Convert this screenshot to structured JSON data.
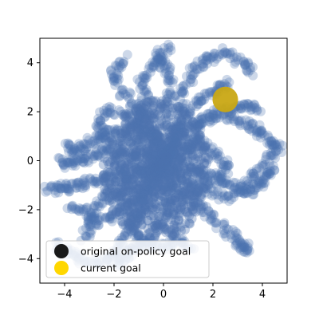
{
  "chart_data": {
    "type": "scatter",
    "xlim": [
      -5,
      5
    ],
    "ylim": [
      -5,
      5
    ],
    "x_ticks": [
      -4,
      -2,
      0,
      2,
      4
    ],
    "y_ticks": [
      -4,
      -2,
      0,
      2,
      4
    ],
    "x_tick_labels": [
      "−4",
      "−2",
      "0",
      "2",
      "4"
    ],
    "y_tick_labels": [
      "−4",
      "−2",
      "0",
      "2",
      "4"
    ],
    "grid": false,
    "legend_position": "lower-left",
    "colors": {
      "trajectory": "#4c72b0",
      "original_goal": "#1a1a1a",
      "current_goal": "#ffd700",
      "current_goal_marker_overlay": "#c9a814"
    },
    "series": [
      {
        "name": "original on-policy goal",
        "marker": "circle",
        "points": []
      },
      {
        "name": "current goal",
        "marker": "circle",
        "points": [
          [
            2.5,
            2.5
          ]
        ]
      }
    ],
    "trajectory_walks": [
      [
        [
          0,
          0
        ],
        [
          -0.3,
          0.8
        ],
        [
          -0.6,
          1.6
        ],
        [
          -1.2,
          2.3
        ],
        [
          -1.8,
          3.0
        ],
        [
          -2.0,
          3.6
        ],
        [
          -1.6,
          4.2
        ]
      ],
      [
        [
          0,
          0
        ],
        [
          0.4,
          1.0
        ],
        [
          0.2,
          2.0
        ],
        [
          0.3,
          3.0
        ],
        [
          0.1,
          3.7
        ],
        [
          -0.3,
          4.3
        ],
        [
          0.3,
          4.7
        ]
      ],
      [
        [
          0,
          0
        ],
        [
          0.3,
          0.7
        ],
        [
          0.9,
          1.3
        ],
        [
          1.6,
          1.6
        ],
        [
          2.2,
          2.0
        ],
        [
          2.9,
          2.1
        ],
        [
          3.4,
          2.3
        ],
        [
          4.0,
          2.1
        ]
      ],
      [
        [
          0,
          0
        ],
        [
          0.5,
          -0.5
        ],
        [
          1.2,
          -1.0
        ],
        [
          1.8,
          -1.2
        ],
        [
          2.5,
          -1.5
        ],
        [
          3.2,
          -1.2
        ],
        [
          3.6,
          -0.6
        ],
        [
          4.2,
          0.0
        ],
        [
          4.7,
          0.6
        ]
      ],
      [
        [
          0,
          0
        ],
        [
          0.6,
          -1.0
        ],
        [
          1.3,
          -1.6
        ],
        [
          1.8,
          -2.2
        ],
        [
          2.4,
          -2.7
        ],
        [
          3.0,
          -3.2
        ],
        [
          3.2,
          -3.6
        ],
        [
          3.4,
          -3.5
        ]
      ],
      [
        [
          0,
          0
        ],
        [
          -0.5,
          -0.8
        ],
        [
          -1.0,
          -1.6
        ],
        [
          -1.6,
          -2.0
        ],
        [
          -2.2,
          -2.4
        ],
        [
          -2.8,
          -2.5
        ],
        [
          -3.2,
          -2.0
        ],
        [
          -3.8,
          -1.9
        ]
      ],
      [
        [
          0,
          0
        ],
        [
          -1.0,
          -0.4
        ],
        [
          -2.0,
          -0.6
        ],
        [
          -2.8,
          -0.8
        ],
        [
          -3.4,
          -1.0
        ],
        [
          -3.8,
          -1.1
        ],
        [
          -4.2,
          -1.1
        ],
        [
          -4.7,
          -1.2
        ]
      ],
      [
        [
          0,
          0
        ],
        [
          -0.7,
          -1.2
        ],
        [
          -1.2,
          -2.4
        ],
        [
          -1.6,
          -3.2
        ],
        [
          -1.9,
          -3.8
        ],
        [
          -2.5,
          -4.1
        ],
        [
          -3.2,
          -4.1
        ],
        [
          -3.8,
          -3.8
        ],
        [
          -4.4,
          -3.4
        ]
      ],
      [
        [
          0,
          0
        ],
        [
          -0.8,
          0.2
        ],
        [
          -1.6,
          0.3
        ],
        [
          -2.4,
          0.4
        ],
        [
          -2.9,
          0.2
        ],
        [
          -3.4,
          0.0
        ],
        [
          -3.8,
          -0.2
        ],
        [
          -4.2,
          0.1
        ]
      ],
      [
        [
          0,
          0
        ],
        [
          0.9,
          0.3
        ],
        [
          1.5,
          0.8
        ],
        [
          2.1,
          0.2
        ],
        [
          2.6,
          -0.3
        ],
        [
          2.2,
          -0.9
        ],
        [
          1.4,
          -0.6
        ]
      ],
      [
        [
          0,
          0
        ],
        [
          0.2,
          -1.2
        ],
        [
          0.1,
          -2.3
        ],
        [
          -0.4,
          -3.0
        ],
        [
          -0.9,
          -3.3
        ],
        [
          -1.3,
          -3.7
        ],
        [
          -1.6,
          -4.0
        ],
        [
          -2.0,
          -4.3
        ]
      ],
      [
        [
          0,
          0
        ],
        [
          -0.4,
          1.2
        ],
        [
          -1.3,
          1.8
        ],
        [
          -2.2,
          2.1
        ],
        [
          -2.6,
          1.6
        ],
        [
          -2.4,
          0.9
        ],
        [
          -1.8,
          0.6
        ]
      ],
      [
        [
          0,
          0
        ],
        [
          0.8,
          1.6
        ],
        [
          0.6,
          2.5
        ],
        [
          1.0,
          3.3
        ],
        [
          1.4,
          3.9
        ],
        [
          1.9,
          4.2
        ],
        [
          2.5,
          4.5
        ],
        [
          3.2,
          4.0
        ],
        [
          3.7,
          3.6
        ]
      ],
      [
        [
          0,
          0
        ],
        [
          1.1,
          -0.3
        ],
        [
          2.0,
          -0.6
        ],
        [
          2.8,
          -1.0
        ],
        [
          3.4,
          -1.3
        ],
        [
          3.9,
          -1.0
        ],
        [
          4.1,
          -0.5
        ],
        [
          4.4,
          -0.3
        ]
      ],
      [
        [
          0,
          0
        ],
        [
          -0.6,
          -0.3
        ],
        [
          -1.4,
          -0.9
        ],
        [
          -2.0,
          -1.4
        ],
        [
          -2.6,
          -1.7
        ],
        [
          -3.0,
          -2.6
        ],
        [
          -3.2,
          -3.2
        ]
      ],
      [
        [
          0,
          0
        ],
        [
          0.5,
          0.5
        ],
        [
          0.6,
          1.4
        ],
        [
          1.1,
          2.2
        ],
        [
          1.6,
          2.6
        ],
        [
          2.2,
          2.9
        ],
        [
          2.6,
          3.2
        ]
      ],
      [
        [
          0,
          0
        ],
        [
          -0.2,
          -0.6
        ],
        [
          -0.8,
          -1.8
        ],
        [
          -1.3,
          -2.6
        ],
        [
          -0.8,
          -3.4
        ],
        [
          0.0,
          -3.6
        ],
        [
          0.6,
          -3.2
        ],
        [
          1.2,
          -3.5
        ]
      ],
      [
        [
          0,
          0
        ],
        [
          0.3,
          0.4
        ],
        [
          -0.5,
          1.0
        ],
        [
          -1.1,
          1.4
        ],
        [
          -0.7,
          2.4
        ],
        [
          -0.9,
          3.2
        ],
        [
          -0.5,
          3.8
        ],
        [
          0.0,
          4.2
        ]
      ],
      [
        [
          0,
          0
        ],
        [
          -1.2,
          0.8
        ],
        [
          -2.0,
          1.2
        ],
        [
          -2.6,
          1.0
        ],
        [
          -3.2,
          0.6
        ],
        [
          -3.6,
          0.4
        ],
        [
          -3.9,
          0.6
        ]
      ],
      [
        [
          0,
          0
        ],
        [
          1.0,
          0.6
        ],
        [
          1.4,
          1.4
        ],
        [
          1.9,
          1.9
        ],
        [
          2.8,
          1.7
        ],
        [
          3.4,
          1.5
        ],
        [
          3.9,
          1.2
        ],
        [
          4.3,
          0.8
        ],
        [
          4.6,
          0.5
        ]
      ]
    ]
  },
  "legend": {
    "entries": [
      {
        "label": "original on-policy goal"
      },
      {
        "label": "current goal"
      }
    ]
  }
}
